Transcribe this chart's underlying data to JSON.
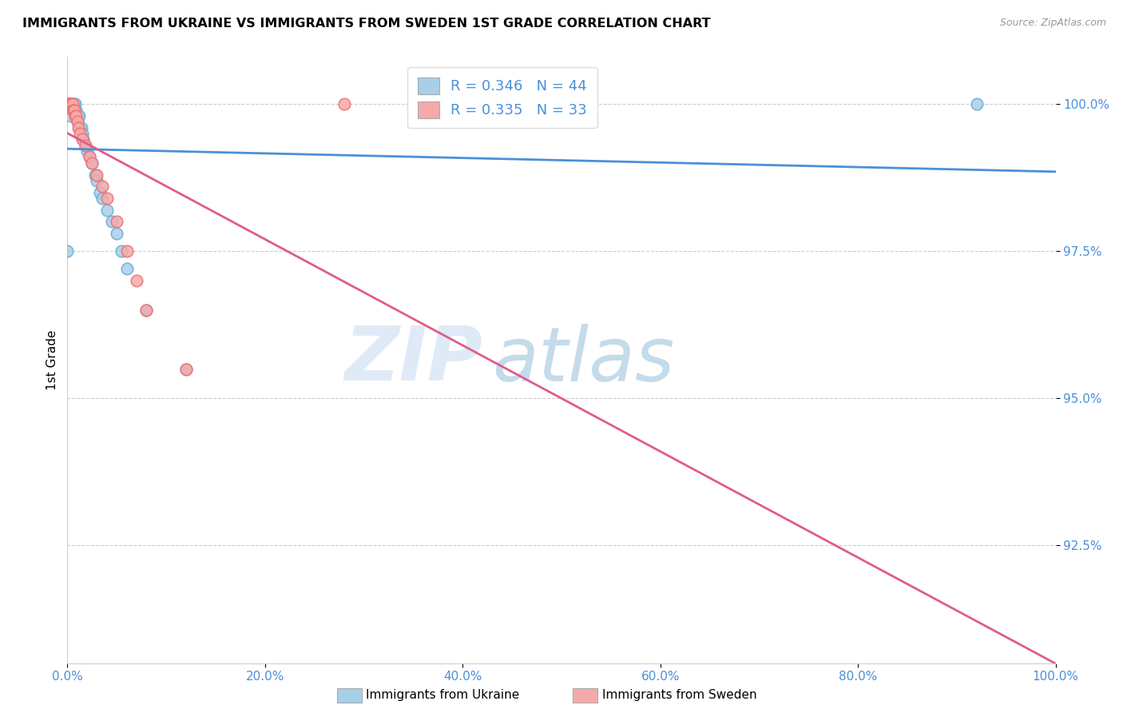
{
  "title": "IMMIGRANTS FROM UKRAINE VS IMMIGRANTS FROM SWEDEN 1ST GRADE CORRELATION CHART",
  "source": "Source: ZipAtlas.com",
  "xlabel_bottom": "Immigrants from Ukraine",
  "xlabel2_bottom": "Immigrants from Sweden",
  "ylabel": "1st Grade",
  "xlim": [
    0.0,
    100.0
  ],
  "ylim": [
    0.905,
    1.008
  ],
  "xtick_labels": [
    "0.0%",
    "20.0%",
    "40.0%",
    "60.0%",
    "80.0%",
    "100.0%"
  ],
  "xtick_vals": [
    0.0,
    20.0,
    40.0,
    60.0,
    80.0,
    100.0
  ],
  "ytick_labels": [
    "92.5%",
    "95.0%",
    "97.5%",
    "100.0%"
  ],
  "ytick_vals": [
    0.925,
    0.95,
    0.975,
    1.0
  ],
  "R_ukraine": 0.346,
  "N_ukraine": 44,
  "R_sweden": 0.335,
  "N_sweden": 33,
  "ukraine_color": "#a8cfe8",
  "sweden_color": "#f4aaaa",
  "ukraine_edge_color": "#6baed6",
  "sweden_edge_color": "#f07070",
  "ukraine_line_color": "#4a90d9",
  "sweden_line_color": "#e05c8a",
  "watermark_zip": "ZIP",
  "watermark_atlas": "atlas",
  "ukraine_x": [
    0.0,
    0.1,
    0.15,
    0.2,
    0.2,
    0.25,
    0.3,
    0.3,
    0.35,
    0.4,
    0.45,
    0.5,
    0.55,
    0.6,
    0.65,
    0.7,
    0.7,
    0.75,
    0.8,
    0.85,
    1.0,
    1.0,
    1.1,
    1.2,
    1.3,
    1.4,
    1.5,
    1.6,
    1.8,
    2.0,
    2.2,
    2.5,
    2.8,
    3.0,
    3.3,
    3.5,
    4.0,
    4.5,
    5.0,
    5.5,
    6.0,
    8.0,
    12.0,
    92.0
  ],
  "ukraine_y": [
    0.975,
    1.0,
    1.0,
    1.0,
    1.0,
    1.0,
    1.0,
    0.998,
    1.0,
    1.0,
    1.0,
    1.0,
    1.0,
    1.0,
    1.0,
    1.0,
    0.999,
    1.0,
    0.999,
    0.999,
    0.998,
    0.997,
    0.998,
    0.998,
    0.996,
    0.996,
    0.995,
    0.994,
    0.993,
    0.992,
    0.991,
    0.99,
    0.988,
    0.987,
    0.985,
    0.984,
    0.982,
    0.98,
    0.978,
    0.975,
    0.972,
    0.965,
    0.955,
    1.0
  ],
  "sweden_x": [
    0.0,
    0.05,
    0.1,
    0.15,
    0.2,
    0.2,
    0.25,
    0.3,
    0.35,
    0.4,
    0.45,
    0.5,
    0.55,
    0.6,
    0.7,
    0.75,
    0.85,
    1.0,
    1.1,
    1.3,
    1.5,
    1.8,
    2.2,
    2.5,
    3.0,
    3.5,
    4.0,
    5.0,
    6.0,
    7.0,
    8.0,
    12.0,
    28.0
  ],
  "sweden_y": [
    1.0,
    1.0,
    1.0,
    1.0,
    1.0,
    1.0,
    1.0,
    1.0,
    1.0,
    1.0,
    1.0,
    1.0,
    0.999,
    0.999,
    0.999,
    0.998,
    0.998,
    0.997,
    0.996,
    0.995,
    0.994,
    0.993,
    0.991,
    0.99,
    0.988,
    0.986,
    0.984,
    0.98,
    0.975,
    0.97,
    0.965,
    0.955,
    1.0
  ]
}
